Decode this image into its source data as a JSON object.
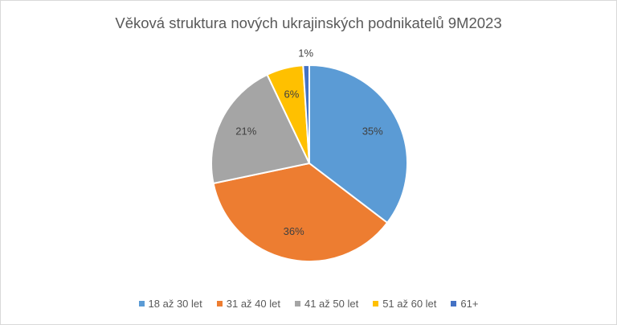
{
  "chart_data": {
    "type": "pie",
    "title": "Věková struktura nových ukrajinských podnikatelů 9M2023",
    "categories": [
      "18 až 30 let",
      "31 až 40 let",
      "41 až 50 let",
      "51 až 60 let",
      "61+"
    ],
    "values": [
      35,
      36,
      21,
      6,
      1
    ],
    "data_labels": [
      "35%",
      "36%",
      "21%",
      "6%",
      "1%"
    ],
    "colors": [
      "#5B9BD5",
      "#ED7D31",
      "#A5A5A5",
      "#FFC000",
      "#4472C4"
    ],
    "legend_position": "bottom",
    "start_angle_deg": 0,
    "direction": "clockwise"
  }
}
